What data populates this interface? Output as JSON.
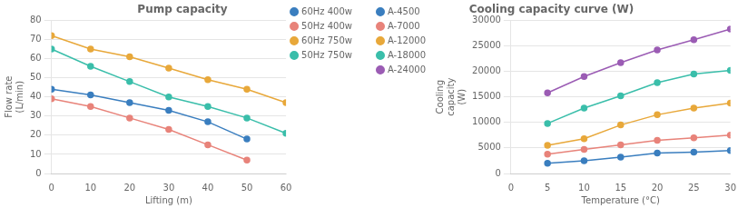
{
  "chart_data": [
    {
      "type": "line",
      "title": "Pump capacity",
      "xlabel": "Lifting (m)",
      "ylabel": "Flow rate\n(L/min)",
      "xlim": [
        0,
        60
      ],
      "ylim": [
        0,
        80
      ],
      "xticks": [
        0,
        10,
        20,
        30,
        40,
        50,
        60
      ],
      "yticks": [
        0,
        10,
        20,
        30,
        40,
        50,
        60,
        70,
        80
      ],
      "grid": "y",
      "legend": "upper right",
      "marker": "o",
      "series": [
        {
          "name": "60Hz 400w",
          "color": "#3A7EBF",
          "x": [
            0,
            10,
            20,
            30,
            40,
            50
          ],
          "values": [
            44,
            41,
            37,
            33,
            27,
            18
          ]
        },
        {
          "name": "50Hz 400w",
          "color": "#E8837A",
          "x": [
            0,
            10,
            20,
            30,
            40,
            50
          ],
          "values": [
            39,
            35,
            29,
            23,
            15,
            7
          ]
        },
        {
          "name": "60Hz 750w",
          "color": "#E8A83A",
          "x": [
            0,
            10,
            20,
            30,
            40,
            50,
            60
          ],
          "values": [
            72,
            65,
            61,
            55,
            49,
            44,
            37
          ]
        },
        {
          "name": "50Hz 750w",
          "color": "#3ABEAA",
          "x": [
            0,
            10,
            20,
            30,
            40,
            50,
            60
          ],
          "values": [
            65,
            56,
            48,
            40,
            35,
            29,
            21
          ]
        }
      ]
    },
    {
      "type": "line",
      "title": "Cooling capacity curve (W)",
      "xlabel": "Temperature (°C)",
      "ylabel": "Cooling\ncapacity\n(W)",
      "xlim": [
        0,
        30
      ],
      "ylim": [
        0,
        30000
      ],
      "xticks": [
        0,
        5,
        10,
        15,
        20,
        25,
        30
      ],
      "yticks": [
        0,
        5000,
        10000,
        15000,
        20000,
        25000,
        30000
      ],
      "grid": "y",
      "legend": "upper left",
      "marker": "o",
      "series": [
        {
          "name": "A-4500",
          "color": "#3A7EBF",
          "x": [
            5,
            10,
            15,
            20,
            25,
            30
          ],
          "values": [
            2000,
            2500,
            3200,
            4000,
            4200,
            4500
          ]
        },
        {
          "name": "A-7000",
          "color": "#E8837A",
          "x": [
            5,
            10,
            15,
            20,
            25,
            30
          ],
          "values": [
            3800,
            4700,
            5600,
            6500,
            7000,
            7500
          ]
        },
        {
          "name": "A-12000",
          "color": "#E8A83A",
          "x": [
            5,
            10,
            15,
            20,
            25,
            30
          ],
          "values": [
            5500,
            6800,
            9500,
            11500,
            12800,
            13800
          ]
        },
        {
          "name": "A-18000",
          "color": "#3ABEAA",
          "x": [
            5,
            10,
            15,
            20,
            25,
            30
          ],
          "values": [
            9800,
            12800,
            15200,
            17800,
            19500,
            20200
          ]
        },
        {
          "name": "A-24000",
          "color": "#9B5CB4",
          "x": [
            5,
            10,
            15,
            20,
            25,
            30
          ],
          "values": [
            15800,
            19000,
            21700,
            24200,
            26200,
            28300
          ]
        }
      ]
    }
  ]
}
